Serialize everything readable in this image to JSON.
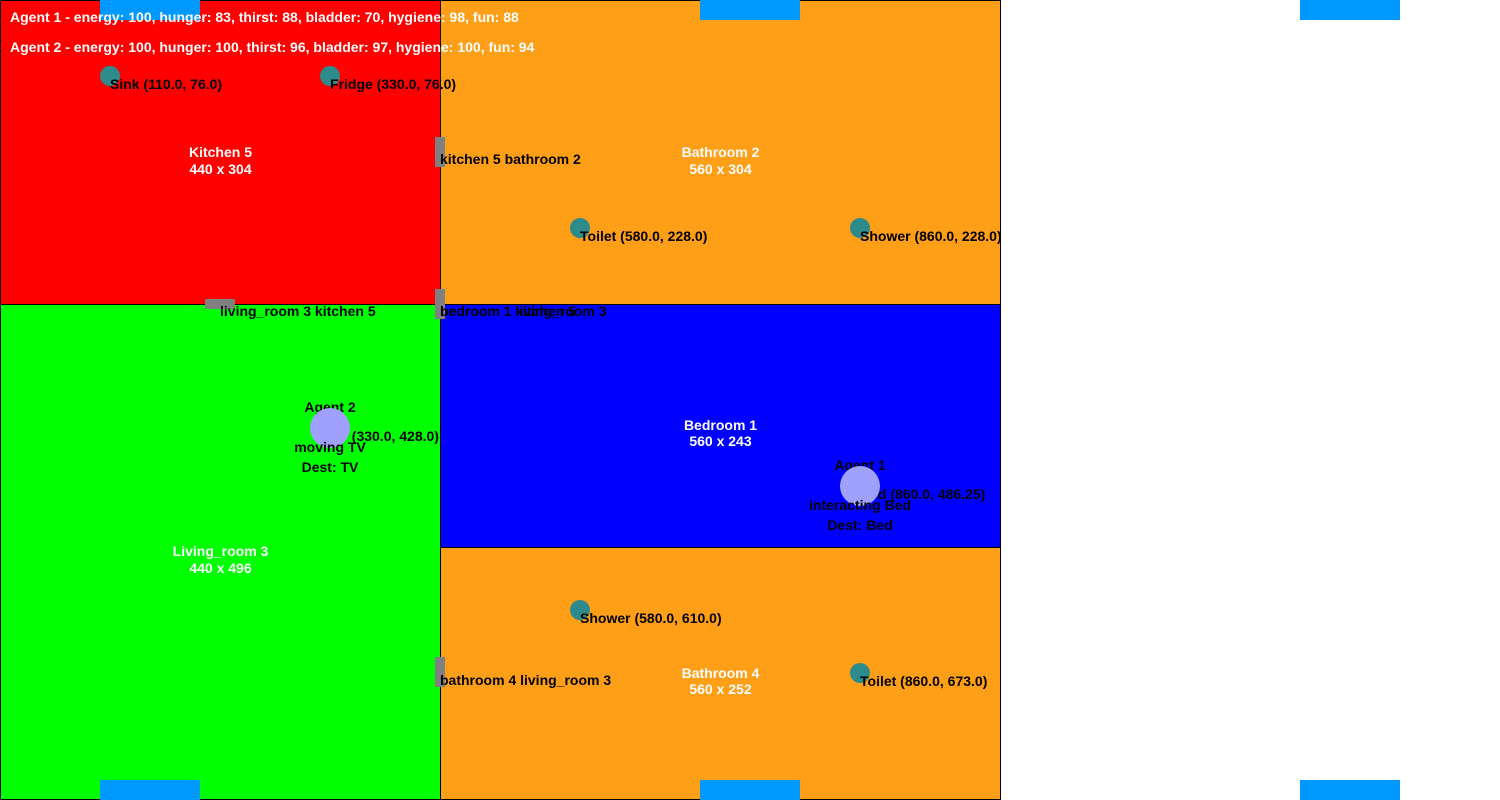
{
  "colors": {
    "kitchen": "#ff0000",
    "living_room": "#00ff00",
    "bathroom": "#ff9e17",
    "bedroom": "#0000ff",
    "window": "#0099ff",
    "door": "#808080",
    "object": "#2e8b8b",
    "agent": "#a0a0ff"
  },
  "status": {
    "agent1": "Agent 1 - energy: 100, hunger: 83, thirst: 88, bladder: 70, hygiene: 98, fun: 88",
    "agent2": "Agent 2 - energy: 100, hunger: 100, thirst: 96, bladder: 97, hygiene: 100, fun: 94"
  },
  "rooms": {
    "kitchen": {
      "name": "Kitchen 5",
      "size": "440 x 304"
    },
    "bathroom_top": {
      "name": "Bathroom 2",
      "size": "560 x 304"
    },
    "living_room": {
      "name": "Living_room 3",
      "size": "440 x 496"
    },
    "bedroom": {
      "name": "Bedroom 1",
      "size": "560 x 243"
    },
    "bathroom_bottom": {
      "name": "Bathroom 4",
      "size": "560 x 252"
    }
  },
  "doors": {
    "kitchen_bathroom": "kitchen 5 bathroom 2",
    "living_kitchen": "living_room 3 kitchen 5",
    "bedroom_kitchen": "bedroom 1 kitchen 5",
    "bedroom_living": "bedroom 1 living_room 3",
    "bathroom_living": "bathroom 4 living_room 3"
  },
  "objects": {
    "sink": "Sink (110.0, 76.0)",
    "fridge": "Fridge (330.0, 76.0)",
    "toilet_top": "Toilet (580.0, 228.0)",
    "shower_top": "Shower (860.0, 228.0)",
    "tv": "TV (330.0, 428.0)",
    "bed": "Bed (860.0, 486.25)",
    "shower_bottom": "Shower (580.0, 610.0)",
    "toilet_bottom": "Toilet (860.0, 673.0)"
  },
  "agents": {
    "agent1": {
      "name": "Agent 1",
      "state": "interacting Bed",
      "dest": "Dest: Bed"
    },
    "agent2": {
      "name": "Agent 2",
      "state": "moving TV",
      "dest": "Dest: TV"
    }
  }
}
